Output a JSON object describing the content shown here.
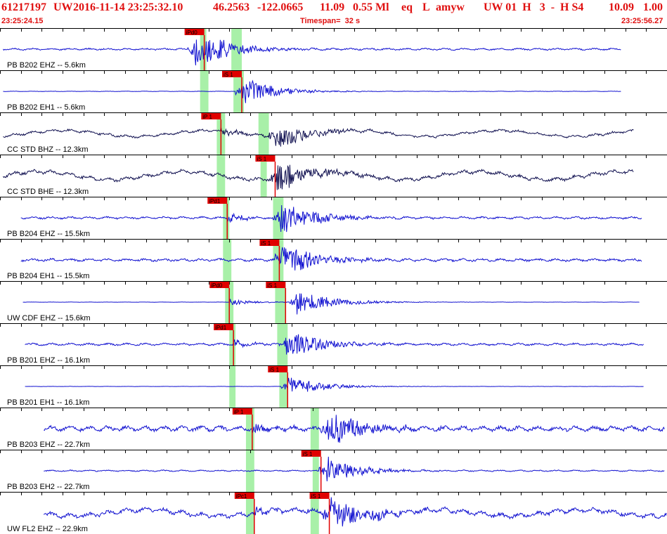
{
  "header": {
    "event_id": "61217197",
    "network": "UW",
    "origin_time": "2016-11-14 23:25:32.10",
    "latitude": "46.2563",
    "longitude": "-122.0665",
    "depth": "11.09",
    "magnitude": "0.55 Ml",
    "event_type": "eq",
    "flag": "L",
    "analyst": "amyw",
    "quality": "UW 01  H   3  -  H S4",
    "rms": "10.09",
    "gap": "1.00",
    "start_time": "23:25:24.15",
    "timespan": "Timespan=  32 s",
    "end_time": "23:25:56.27"
  },
  "colors": {
    "header_text": "#e01010",
    "trace_blue": "#1010d0",
    "trace_navy": "#101050",
    "pick_red": "#e00000",
    "pick_window": "#a8f0a8",
    "grid": "#000000",
    "label_text": "#000000"
  },
  "chart_data": {
    "type": "line",
    "title": "",
    "xlabel": "",
    "ylabel": "",
    "time_range_s": [
      0,
      32
    ],
    "time_tick_interval_s": 1,
    "series": [
      {
        "label": "PB B202 EHZ -- 5.6km",
        "color": "trace_blue",
        "noise": 0.08,
        "drift": 0.0,
        "start_s": 0.15,
        "end_s": 29.8,
        "burst_s": 9.3,
        "amp": 1.0,
        "picks": [
          {
            "label": "iPd0",
            "t": 9.8,
            "window_s": [
              9.6,
              9.9
            ]
          },
          {
            "label": "",
            "t": 11.3,
            "window_s": [
              11.1,
              11.6
            ]
          }
        ]
      },
      {
        "label": "PB B202 EH1 -- 5.6km",
        "color": "trace_blue",
        "noise": 0.02,
        "drift": 0.0,
        "start_s": 0.15,
        "end_s": 29.8,
        "burst_s": 11.6,
        "amp": 0.7,
        "picks": [
          {
            "label": "iS 1",
            "t": 11.6,
            "window_s": [
              11.2,
              11.7
            ]
          },
          {
            "label": "",
            "t": 9.9,
            "window_s": [
              9.6,
              10.0
            ]
          }
        ]
      },
      {
        "label": "CC STD BHZ -- 12.3km",
        "color": "trace_navy",
        "noise": 0.12,
        "drift": 0.3,
        "start_s": 0.15,
        "end_s": 30.4,
        "burst_s": 13.2,
        "amp": 0.7,
        "picks": [
          {
            "label": "iP 1",
            "t": 10.6,
            "window_s": [
              10.4,
              10.8
            ]
          },
          {
            "label": "",
            "t": 12.6,
            "window_s": [
              12.4,
              12.9
            ]
          }
        ]
      },
      {
        "label": "CC STD BHE -- 12.3km",
        "color": "trace_navy",
        "noise": 0.18,
        "drift": 0.4,
        "start_s": 0.15,
        "end_s": 30.4,
        "burst_s": 13.3,
        "amp": 0.8,
        "picks": [
          {
            "label": "iS 1",
            "t": 13.2,
            "window_s": [
              12.5,
              12.8
            ]
          },
          {
            "label": "",
            "t": 10.5,
            "window_s": [
              10.4,
              10.8
            ]
          }
        ]
      },
      {
        "label": "PB B204 EHZ -- 15.5km",
        "color": "trace_blue",
        "noise": 0.1,
        "drift": 0.0,
        "start_s": 1.0,
        "end_s": 30.8,
        "burst_s": 13.4,
        "amp": 0.9,
        "picks": [
          {
            "label": "iPd1",
            "t": 10.9,
            "window_s": [
              10.7,
              11.0
            ]
          },
          {
            "label": "",
            "t": 13.5,
            "window_s": [
              13.1,
              13.6
            ]
          }
        ]
      },
      {
        "label": "PB B204 EH1 -- 15.5km",
        "color": "trace_blue",
        "noise": 0.12,
        "drift": 0.0,
        "start_s": 1.0,
        "end_s": 30.8,
        "burst_s": 13.5,
        "amp": 0.9,
        "picks": [
          {
            "label": "iS 1",
            "t": 13.4,
            "window_s": [
              13.1,
              13.6
            ]
          },
          {
            "label": "",
            "t": 10.9,
            "window_s": [
              10.7,
              11.1
            ]
          }
        ]
      },
      {
        "label": "UW CDF EHZ -- 15.6km",
        "color": "trace_blue",
        "noise": 0.01,
        "drift": 0.0,
        "start_s": 1.1,
        "end_s": 30.7,
        "burst_s": 14.2,
        "amp": 0.7,
        "picks": [
          {
            "label": "iPd0",
            "t": 11.0,
            "window_s": [
              10.8,
              11.2
            ]
          },
          {
            "label": "iS 1",
            "t": 13.7,
            "window_s": [
              13.2,
              13.7
            ]
          }
        ]
      },
      {
        "label": "PB B201 EHZ -- 16.1km",
        "color": "trace_blue",
        "noise": 0.1,
        "drift": 0.0,
        "start_s": 1.2,
        "end_s": 30.9,
        "burst_s": 13.7,
        "amp": 0.8,
        "picks": [
          {
            "label": "iPd1",
            "t": 11.2,
            "window_s": [
              11.0,
              11.3
            ]
          },
          {
            "label": "",
            "t": 13.6,
            "window_s": [
              13.3,
              13.8
            ]
          }
        ]
      },
      {
        "label": "PB B201 EH1 -- 16.1km",
        "color": "trace_blue",
        "noise": 0.01,
        "drift": 0.0,
        "start_s": 1.2,
        "end_s": 30.9,
        "burst_s": 13.8,
        "amp": 0.5,
        "picks": [
          {
            "label": "iS 1",
            "t": 13.8,
            "window_s": [
              13.4,
              13.8
            ]
          },
          {
            "label": "",
            "t": 11.2,
            "window_s": [
              11.0,
              11.3
            ]
          }
        ]
      },
      {
        "label": "PB B203 EHZ -- 22.7km",
        "color": "trace_blue",
        "noise": 0.22,
        "drift": 0.0,
        "start_s": 2.1,
        "end_s": 31.9,
        "burst_s": 15.7,
        "amp": 1.0,
        "picks": [
          {
            "label": "iP 1",
            "t": 12.1,
            "window_s": [
              11.8,
              12.2
            ]
          },
          {
            "label": "",
            "t": 15.2,
            "window_s": [
              14.9,
              15.3
            ]
          }
        ]
      },
      {
        "label": "PB B203 EH2 -- 22.7km",
        "color": "trace_blue",
        "noise": 0.06,
        "drift": 0.0,
        "start_s": 2.1,
        "end_s": 31.9,
        "burst_s": 15.6,
        "amp": 0.7,
        "picks": [
          {
            "label": "iS 1",
            "t": 15.4,
            "window_s": [
              15.0,
              15.3
            ]
          },
          {
            "label": "",
            "t": 12.0,
            "window_s": [
              11.8,
              12.2
            ]
          }
        ]
      },
      {
        "label": "UW FL2 EHZ -- 22.9km",
        "color": "trace_blue",
        "noise": 0.22,
        "drift": 0.3,
        "start_s": 2.1,
        "end_s": 32.0,
        "burst_s": 15.8,
        "amp": 1.0,
        "picks": [
          {
            "label": "iPc1",
            "t": 12.2,
            "window_s": [
              11.8,
              12.2
            ]
          },
          {
            "label": "iS 1",
            "t": 15.8,
            "window_s": [
              14.9,
              15.3
            ]
          }
        ]
      }
    ]
  }
}
